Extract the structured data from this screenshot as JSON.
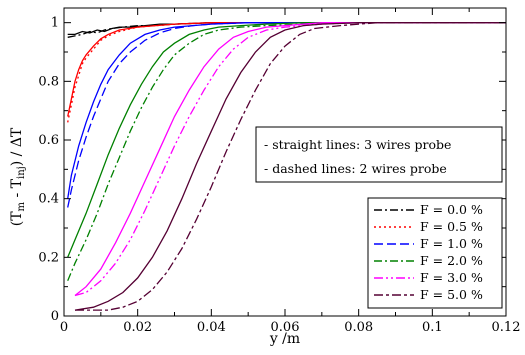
{
  "chart_data": {
    "type": "line",
    "xlabel": "y /m",
    "ylabel": {
      "prefix": "(T",
      "sub1": "m",
      "mid": " - T",
      "sub2": "inj",
      "suffix": ") / ΔT"
    },
    "xlim": [
      0,
      0.12
    ],
    "ylim": [
      0,
      1.05
    ],
    "xticks": [
      {
        "value": 0,
        "label": "0"
      },
      {
        "value": 0.02,
        "label": "0.02"
      },
      {
        "value": 0.04,
        "label": "0.04"
      },
      {
        "value": 0.06,
        "label": "0.06"
      },
      {
        "value": 0.08,
        "label": "0.08"
      },
      {
        "value": 0.1,
        "label": "0.1"
      },
      {
        "value": 0.12,
        "label": "0.12"
      }
    ],
    "yticks": [
      {
        "value": 0,
        "label": "0"
      },
      {
        "value": 0.2,
        "label": "0.2"
      },
      {
        "value": 0.4,
        "label": "0.4"
      },
      {
        "value": 0.6,
        "label": "0.6"
      },
      {
        "value": 0.8,
        "label": "0.8"
      },
      {
        "value": 1,
        "label": "1"
      }
    ],
    "grid": false,
    "legend_position": "bottom-right",
    "annotations": [
      "- straight lines: 3 wires probe",
      "- dashed lines: 2 wires probe"
    ],
    "series": [
      {
        "name": "F = 0.0 %",
        "color": "#000000",
        "dash": "8,3,2,3",
        "solid": {
          "x": [
            0.001,
            0.003,
            0.005,
            0.007,
            0.009,
            0.011,
            0.013,
            0.015,
            0.018,
            0.022,
            0.026,
            0.03,
            0.04,
            0.06,
            0.08,
            0.1,
            0.12
          ],
          "y": [
            0.96,
            0.96,
            0.97,
            0.965,
            0.975,
            0.97,
            0.98,
            0.985,
            0.985,
            0.99,
            0.995,
            0.995,
            1.0,
            1.0,
            1.0,
            1.0,
            1.0
          ]
        },
        "dashed": {
          "x": [
            0.001,
            0.003,
            0.005,
            0.007,
            0.009,
            0.011,
            0.013,
            0.016,
            0.02,
            0.025,
            0.03,
            0.04,
            0.06,
            0.08,
            0.1,
            0.12
          ],
          "y": [
            0.95,
            0.955,
            0.96,
            0.97,
            0.965,
            0.975,
            0.98,
            0.985,
            0.99,
            0.99,
            0.995,
            1.0,
            1.0,
            1.0,
            1.0,
            1.0
          ]
        }
      },
      {
        "name": "F = 0.5 %",
        "color": "#ff0000",
        "dash": "2,3",
        "solid": {
          "x": [
            0.001,
            0.002,
            0.003,
            0.004,
            0.005,
            0.006,
            0.008,
            0.01,
            0.012,
            0.015,
            0.02,
            0.025,
            0.03,
            0.04,
            0.06,
            0.08,
            0.1,
            0.12
          ],
          "y": [
            0.68,
            0.74,
            0.8,
            0.84,
            0.87,
            0.89,
            0.92,
            0.945,
            0.96,
            0.975,
            0.985,
            0.99,
            0.995,
            1.0,
            1.0,
            1.0,
            1.0,
            1.0
          ]
        },
        "dashed": {
          "x": [
            0.001,
            0.002,
            0.003,
            0.004,
            0.005,
            0.006,
            0.008,
            0.01,
            0.012,
            0.015,
            0.02,
            0.025,
            0.03,
            0.04,
            0.06,
            0.08,
            0.1,
            0.12
          ],
          "y": [
            0.66,
            0.72,
            0.78,
            0.82,
            0.86,
            0.88,
            0.91,
            0.94,
            0.955,
            0.97,
            0.985,
            0.99,
            0.995,
            1.0,
            1.0,
            1.0,
            1.0,
            1.0
          ]
        }
      },
      {
        "name": "F = 1.0 %",
        "color": "#0000ff",
        "dash": "9,4",
        "solid": {
          "x": [
            0.001,
            0.002,
            0.004,
            0.006,
            0.008,
            0.01,
            0.012,
            0.015,
            0.018,
            0.022,
            0.026,
            0.03,
            0.035,
            0.04,
            0.05,
            0.06,
            0.08,
            0.1,
            0.12
          ],
          "y": [
            0.4,
            0.48,
            0.58,
            0.66,
            0.73,
            0.79,
            0.84,
            0.89,
            0.93,
            0.96,
            0.975,
            0.985,
            0.99,
            0.995,
            1.0,
            1.0,
            1.0,
            1.0,
            1.0
          ]
        },
        "dashed": {
          "x": [
            0.001,
            0.002,
            0.004,
            0.006,
            0.008,
            0.01,
            0.012,
            0.015,
            0.018,
            0.022,
            0.026,
            0.03,
            0.035,
            0.04,
            0.05,
            0.06,
            0.08,
            0.1,
            0.12
          ],
          "y": [
            0.37,
            0.43,
            0.53,
            0.61,
            0.68,
            0.74,
            0.8,
            0.86,
            0.9,
            0.94,
            0.965,
            0.98,
            0.99,
            0.995,
            1.0,
            1.0,
            1.0,
            1.0,
            1.0
          ]
        }
      },
      {
        "name": "F = 2.0 %",
        "color": "#008000",
        "dash": "8,3,2,3",
        "solid": {
          "x": [
            0.001,
            0.003,
            0.006,
            0.009,
            0.012,
            0.015,
            0.018,
            0.021,
            0.024,
            0.027,
            0.03,
            0.034,
            0.038,
            0.042,
            0.048,
            0.055,
            0.065,
            0.08,
            0.1,
            0.12
          ],
          "y": [
            0.2,
            0.26,
            0.35,
            0.45,
            0.55,
            0.64,
            0.72,
            0.79,
            0.85,
            0.9,
            0.93,
            0.96,
            0.975,
            0.985,
            0.99,
            0.995,
            1.0,
            1.0,
            1.0,
            1.0
          ]
        },
        "dashed": {
          "x": [
            0.001,
            0.003,
            0.006,
            0.009,
            0.012,
            0.015,
            0.018,
            0.021,
            0.024,
            0.027,
            0.03,
            0.034,
            0.038,
            0.042,
            0.048,
            0.055,
            0.065,
            0.08,
            0.1,
            0.12
          ],
          "y": [
            0.12,
            0.18,
            0.26,
            0.35,
            0.45,
            0.54,
            0.63,
            0.71,
            0.78,
            0.84,
            0.89,
            0.93,
            0.96,
            0.975,
            0.985,
            0.99,
            0.995,
            1.0,
            1.0,
            1.0
          ]
        }
      },
      {
        "name": "F = 3.0 %",
        "color": "#ff00ff",
        "dash": "9,3,2,3,2,3",
        "solid": {
          "x": [
            0.003,
            0.006,
            0.01,
            0.014,
            0.018,
            0.022,
            0.026,
            0.03,
            0.034,
            0.038,
            0.042,
            0.046,
            0.05,
            0.055,
            0.06,
            0.07,
            0.08,
            0.1,
            0.12
          ],
          "y": [
            0.07,
            0.1,
            0.16,
            0.25,
            0.35,
            0.46,
            0.57,
            0.68,
            0.77,
            0.85,
            0.91,
            0.95,
            0.97,
            0.985,
            0.99,
            1.0,
            1.0,
            1.0,
            1.0
          ]
        },
        "dashed": {
          "x": [
            0.003,
            0.006,
            0.01,
            0.014,
            0.018,
            0.022,
            0.026,
            0.03,
            0.034,
            0.038,
            0.042,
            0.046,
            0.05,
            0.055,
            0.06,
            0.07,
            0.08,
            0.1,
            0.12
          ],
          "y": [
            0.07,
            0.08,
            0.12,
            0.18,
            0.26,
            0.36,
            0.47,
            0.58,
            0.68,
            0.77,
            0.85,
            0.91,
            0.95,
            0.975,
            0.985,
            0.995,
            1.0,
            1.0,
            1.0
          ]
        }
      },
      {
        "name": "F = 5.0 %",
        "color": "#550033",
        "dash": "9,3,3,3",
        "solid": {
          "x": [
            0.003,
            0.008,
            0.012,
            0.016,
            0.02,
            0.024,
            0.028,
            0.032,
            0.036,
            0.04,
            0.044,
            0.048,
            0.052,
            0.056,
            0.06,
            0.065,
            0.07,
            0.08,
            0.1,
            0.12
          ],
          "y": [
            0.02,
            0.03,
            0.05,
            0.08,
            0.13,
            0.2,
            0.29,
            0.4,
            0.52,
            0.63,
            0.74,
            0.83,
            0.9,
            0.95,
            0.975,
            0.99,
            0.995,
            1.0,
            1.0,
            1.0
          ]
        },
        "dashed": {
          "x": [
            0.003,
            0.012,
            0.016,
            0.02,
            0.024,
            0.028,
            0.032,
            0.036,
            0.04,
            0.044,
            0.048,
            0.052,
            0.056,
            0.06,
            0.064,
            0.068,
            0.075,
            0.085,
            0.1,
            0.12
          ],
          "y": [
            0.02,
            0.02,
            0.03,
            0.05,
            0.09,
            0.15,
            0.23,
            0.33,
            0.44,
            0.56,
            0.67,
            0.77,
            0.86,
            0.92,
            0.96,
            0.98,
            0.99,
            1.0,
            1.0,
            1.0
          ]
        }
      }
    ]
  }
}
